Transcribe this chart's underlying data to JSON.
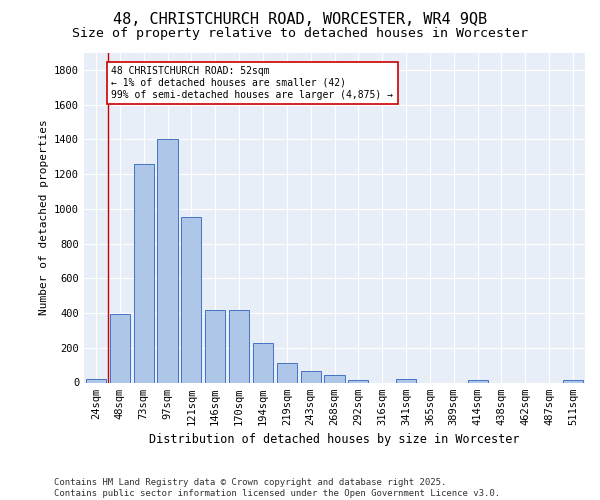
{
  "title": "48, CHRISTCHURCH ROAD, WORCESTER, WR4 9QB",
  "subtitle": "Size of property relative to detached houses in Worcester",
  "xlabel": "Distribution of detached houses by size in Worcester",
  "ylabel": "Number of detached properties",
  "categories": [
    "24sqm",
    "48sqm",
    "73sqm",
    "97sqm",
    "121sqm",
    "146sqm",
    "170sqm",
    "194sqm",
    "219sqm",
    "243sqm",
    "268sqm",
    "292sqm",
    "316sqm",
    "341sqm",
    "365sqm",
    "389sqm",
    "414sqm",
    "438sqm",
    "462sqm",
    "487sqm",
    "511sqm"
  ],
  "values": [
    22,
    395,
    1260,
    1400,
    955,
    415,
    415,
    230,
    115,
    65,
    45,
    15,
    0,
    20,
    0,
    0,
    15,
    0,
    0,
    0,
    15
  ],
  "bar_color": "#aec6e8",
  "bar_edge_color": "#4472c4",
  "vline_color": "#cc0000",
  "vline_x_index": 1,
  "annotation_text": "48 CHRISTCHURCH ROAD: 52sqm\n← 1% of detached houses are smaller (42)\n99% of semi-detached houses are larger (4,875) →",
  "annotation_box_color": "#ffffff",
  "annotation_box_edge": "#cc0000",
  "ylim": [
    0,
    1900
  ],
  "yticks": [
    0,
    200,
    400,
    600,
    800,
    1000,
    1200,
    1400,
    1600,
    1800
  ],
  "background_color": "#e8eef7",
  "footer": "Contains HM Land Registry data © Crown copyright and database right 2025.\nContains public sector information licensed under the Open Government Licence v3.0.",
  "title_fontsize": 11,
  "subtitle_fontsize": 9.5,
  "xlabel_fontsize": 8.5,
  "ylabel_fontsize": 8,
  "tick_fontsize": 7.5,
  "footer_fontsize": 6.5
}
